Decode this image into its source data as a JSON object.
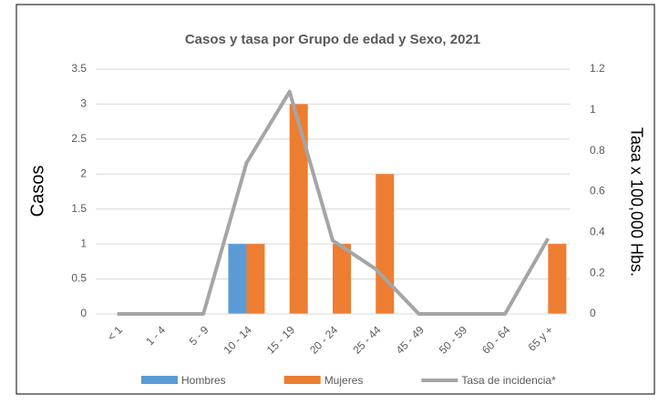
{
  "chart_data": {
    "type": "bar_line",
    "title": "Casos y tasa por Grupo de edad y Sexo, 2021",
    "y_label": "Casos",
    "y2_label": "Tasa x 100,000 Hbs.",
    "categories": [
      "< 1",
      "1 - 4",
      "5 - 9",
      "10 - 14",
      "15 - 19",
      "20 - 24",
      "25 - 44",
      "45 - 49",
      "50 - 59",
      "60 - 64",
      "65 y +"
    ],
    "series": [
      {
        "name": "Hombres",
        "type": "bar",
        "color": "#5b9bd5",
        "values": [
          0,
          0,
          0,
          1,
          0,
          0,
          0,
          0,
          0,
          0,
          0
        ]
      },
      {
        "name": "Mujeres",
        "type": "bar",
        "color": "#ed7d31",
        "values": [
          0,
          0,
          0,
          1,
          3,
          1,
          2,
          0,
          0,
          0,
          1
        ]
      },
      {
        "name": "Tasa de incidencia*",
        "type": "line",
        "axis": "y2",
        "color": "#a5a5a5",
        "values": [
          0,
          0,
          0,
          0.74,
          1.09,
          0.36,
          0.22,
          0,
          0,
          0,
          0.37
        ]
      }
    ],
    "ylim": [
      0,
      3.5
    ],
    "yticks": [
      0,
      0.5,
      1,
      1.5,
      2,
      2.5,
      3,
      3.5
    ],
    "y2lim": [
      0,
      1.2
    ],
    "y2ticks": [
      0,
      0.2,
      0.4,
      0.6,
      0.8,
      1,
      1.2
    ],
    "grid": true,
    "legend": "bottom"
  }
}
